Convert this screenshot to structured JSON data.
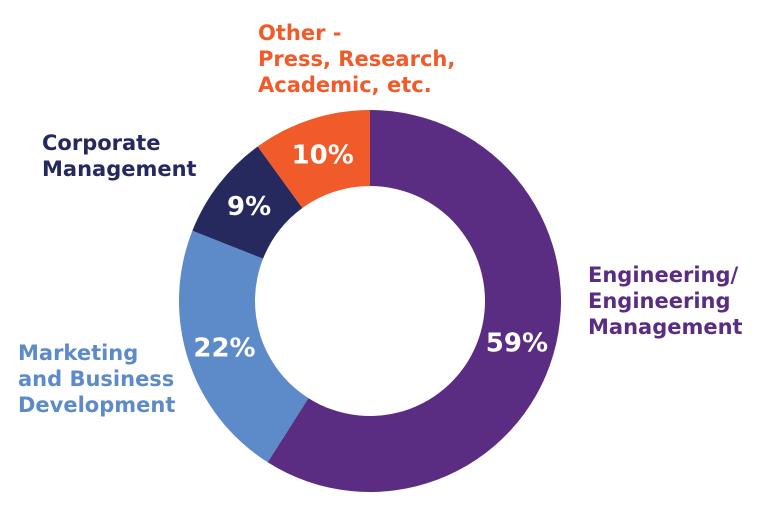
{
  "chart_data": {
    "type": "pie",
    "donut": true,
    "slices": [
      {
        "label_lines": [
          "Engineering/",
          "Engineering",
          "Management"
        ],
        "value": 59,
        "value_label": "59%",
        "color": "#5b2d82"
      },
      {
        "label_lines": [
          "Marketing",
          "and Business",
          "Development"
        ],
        "value": 22,
        "value_label": "22%",
        "color": "#5d8ac8"
      },
      {
        "label_lines": [
          "Corporate",
          "Management"
        ],
        "value": 9,
        "value_label": "9%",
        "color": "#25295e"
      },
      {
        "label_lines": [
          "Other -",
          "Press, Research,",
          "Academic, etc."
        ],
        "value": 10,
        "value_label": "10%",
        "color": "#f15a29"
      }
    ]
  }
}
